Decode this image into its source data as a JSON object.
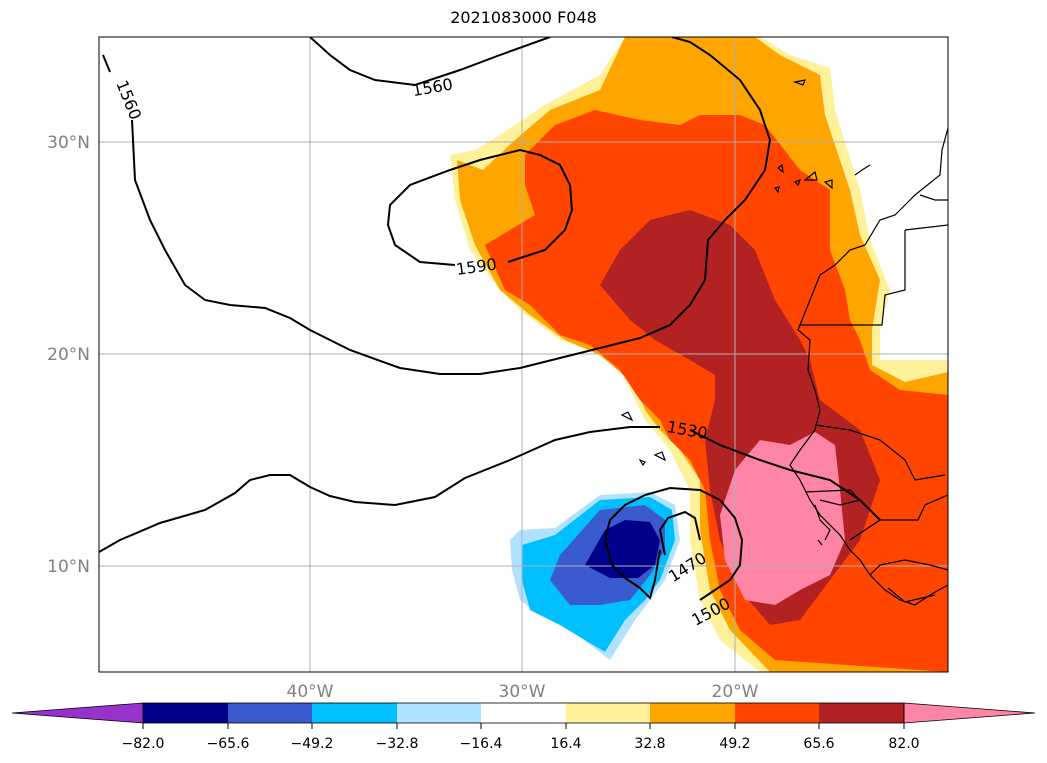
{
  "title": "2021083000 F048",
  "map": {
    "lat_labels": [
      "30°N",
      "20°N",
      "10°N"
    ],
    "lon_labels": [
      "40°W",
      "30°W",
      "20°W"
    ],
    "contour_labels": [
      "1560",
      "1560",
      "1590",
      "1530",
      "1470",
      "1500"
    ]
  },
  "colorbar": {
    "ticks": [
      "−82.0",
      "−65.6",
      "−49.2",
      "−32.8",
      "−16.4",
      "16.4",
      "32.8",
      "49.2",
      "65.6",
      "82.0"
    ],
    "colors": [
      "#9932cc",
      "#00008b",
      "#3a5bcd",
      "#00bfff",
      "#b0e2ff",
      "#ffffff",
      "#fff09a",
      "#ffa500",
      "#ff4500",
      "#b22222",
      "#ff85a6"
    ]
  }
}
